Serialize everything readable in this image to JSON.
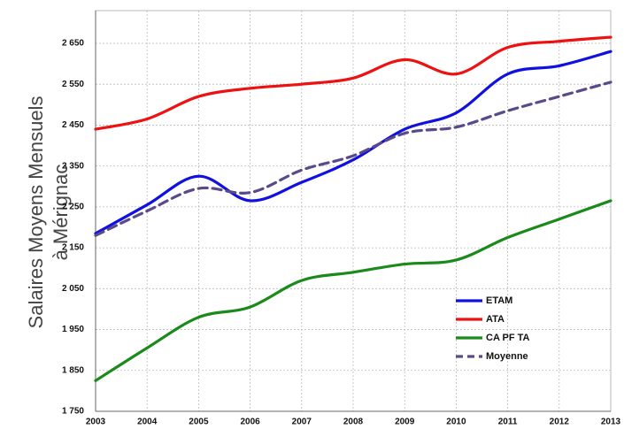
{
  "chart_data": {
    "type": "line",
    "watermark": "NON",
    "ylabel": [
      "Salaires Moyens Mensuels",
      "à Mérignac"
    ],
    "categories": [
      "2003",
      "2004",
      "2005",
      "2006",
      "2007",
      "2008",
      "2009",
      "2010",
      "2011",
      "2012",
      "2013"
    ],
    "series": [
      {
        "name": "ETAM",
        "color": "#1010e0",
        "dash": false,
        "values": [
          2185,
          2255,
          2325,
          2265,
          2310,
          2365,
          2440,
          2480,
          2575,
          2595,
          2630
        ]
      },
      {
        "name": "ATA",
        "color": "#ee1111",
        "dash": false,
        "values": [
          2440,
          2465,
          2520,
          2540,
          2550,
          2565,
          2610,
          2575,
          2640,
          2655,
          2665
        ]
      },
      {
        "name": "CA PF TA",
        "color": "#1a8a1a",
        "dash": false,
        "values": [
          1825,
          1905,
          1980,
          2005,
          2070,
          2090,
          2110,
          2120,
          2175,
          2220,
          2265
        ]
      },
      {
        "name": "Moyenne",
        "color": "#5a4a8a",
        "dash": true,
        "values": [
          2180,
          2240,
          2295,
          2285,
          2340,
          2375,
          2430,
          2445,
          2485,
          2520,
          2555
        ]
      }
    ],
    "ylim": [
      1750,
      2730
    ],
    "yticks": [
      {
        "value": 1750,
        "label": "1 750"
      },
      {
        "value": 1850,
        "label": "1 850"
      },
      {
        "value": 1950,
        "label": "1 950"
      },
      {
        "value": 2050,
        "label": "2 050"
      },
      {
        "value": 2150,
        "label": "2 150"
      },
      {
        "value": 2250,
        "label": "2 250"
      },
      {
        "value": 2350,
        "label": "2 350"
      },
      {
        "value": 2450,
        "label": "2 450"
      },
      {
        "value": 2550,
        "label": "2 550"
      },
      {
        "value": 2650,
        "label": "2 650"
      }
    ],
    "grid": true
  }
}
